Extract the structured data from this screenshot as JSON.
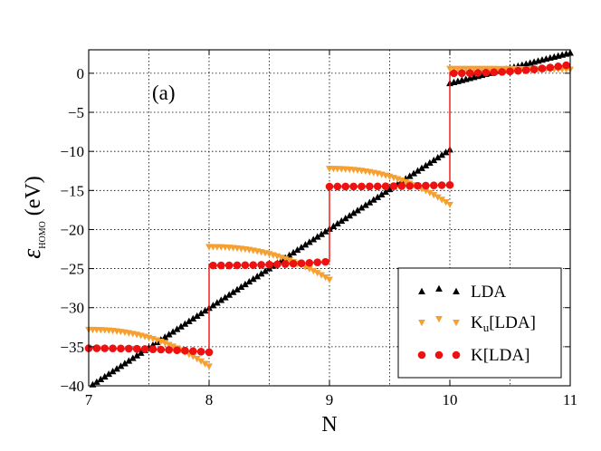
{
  "chart_data": {
    "type": "line",
    "panel_label": "(a)",
    "xlabel": "N",
    "ylabel": {
      "symbol": "ε",
      "subscript": "HOMO",
      "unit": "(eV)"
    },
    "xlim": [
      7,
      11
    ],
    "ylim": [
      -40,
      3
    ],
    "xticks": [
      7,
      8,
      9,
      10,
      11
    ],
    "yticks": [
      0,
      -5,
      -10,
      -15,
      -20,
      -25,
      -30,
      -35,
      -40
    ],
    "grid": true,
    "legend_position": "bottom-right",
    "series": [
      {
        "name": "LDA",
        "legend_label": "LDA",
        "color": "#000000",
        "marker": "triangle-up",
        "model": "linear",
        "points": [
          [
            7,
            -40.2
          ],
          [
            10,
            -9.8
          ],
          [
            10.02,
            -1.3
          ],
          [
            11,
            2.6
          ]
        ]
      },
      {
        "name": "Ku[LDA]",
        "legend_label": "K",
        "legend_sub": "u",
        "legend_suffix": "[LDA]",
        "color": "#f5a030",
        "marker": "triangle-down",
        "model": "integer-segments",
        "segments": [
          {
            "from": 7,
            "to": 8,
            "start": -32.8,
            "end": -37.5
          },
          {
            "from": 8,
            "to": 9,
            "start": -22.2,
            "end": -26.4
          },
          {
            "from": 9,
            "to": 10,
            "start": -12.2,
            "end": -16.8
          },
          {
            "from": 10,
            "to": 11,
            "start": 0.6,
            "end": 0.5
          }
        ]
      },
      {
        "name": "K[LDA]",
        "legend_label": "K[LDA]",
        "color": "#ee1111",
        "marker": "circle",
        "model": "integer-segments",
        "segments": [
          {
            "from": 7,
            "to": 8,
            "start": -35.2,
            "end": -35.7
          },
          {
            "from": 8,
            "to": 9,
            "start": -24.6,
            "end": -24.1
          },
          {
            "from": 9,
            "to": 10,
            "start": -14.5,
            "end": -14.3
          },
          {
            "from": 10,
            "to": 11,
            "start": 0.0,
            "end": 1.1
          }
        ]
      }
    ]
  }
}
